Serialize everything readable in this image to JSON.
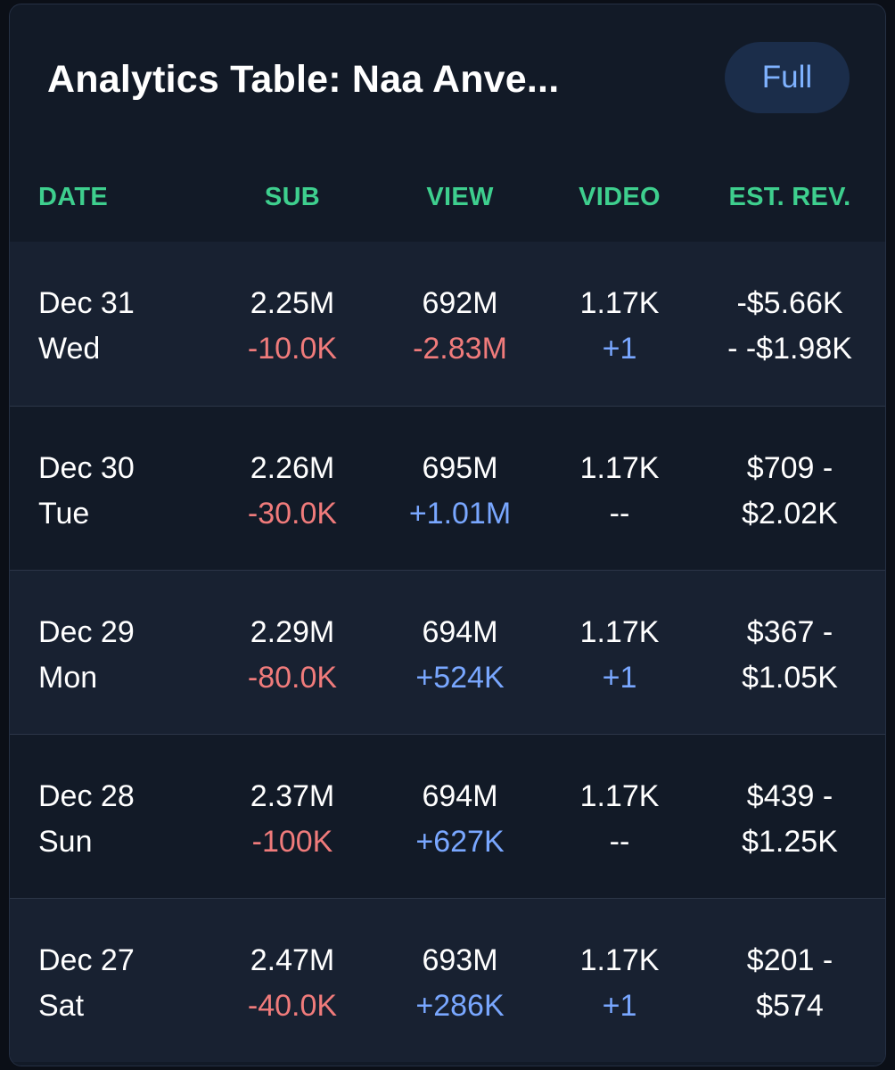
{
  "header": {
    "title": "Analytics Table: Naa Anve...",
    "full_button_label": "Full"
  },
  "columns": {
    "date": "DATE",
    "sub": "SUB",
    "view": "VIEW",
    "video": "VIDEO",
    "rev": "EST. REV."
  },
  "colors": {
    "heading": "#3ecf8e",
    "negative": "#f07b7b",
    "positive": "#79a7ff",
    "card": "#121a27",
    "row_alt": "#182131"
  },
  "rows": [
    {
      "date": "Dec 31",
      "day": "Wed",
      "sub": "2.25M",
      "sub_delta": "-10.0K",
      "view": "692M",
      "view_delta": "-2.83M",
      "video": "1.17K",
      "video_delta": "+1",
      "rev_line1": "-$5.66K",
      "rev_line2": "- -$1.98K"
    },
    {
      "date": "Dec 30",
      "day": "Tue",
      "sub": "2.26M",
      "sub_delta": "-30.0K",
      "view": "695M",
      "view_delta": "+1.01M",
      "video": "1.17K",
      "video_delta": "--",
      "rev_line1": "$709 -",
      "rev_line2": "$2.02K"
    },
    {
      "date": "Dec 29",
      "day": "Mon",
      "sub": "2.29M",
      "sub_delta": "-80.0K",
      "view": "694M",
      "view_delta": "+524K",
      "video": "1.17K",
      "video_delta": "+1",
      "rev_line1": "$367 -",
      "rev_line2": "$1.05K"
    },
    {
      "date": "Dec 28",
      "day": "Sun",
      "sub": "2.37M",
      "sub_delta": "-100K",
      "view": "694M",
      "view_delta": "+627K",
      "video": "1.17K",
      "video_delta": "--",
      "rev_line1": "$439 -",
      "rev_line2": "$1.25K"
    },
    {
      "date": "Dec 27",
      "day": "Sat",
      "sub": "2.47M",
      "sub_delta": "-40.0K",
      "view": "693M",
      "view_delta": "+286K",
      "video": "1.17K",
      "video_delta": "+1",
      "rev_line1": "$201 -",
      "rev_line2": "$574"
    }
  ]
}
